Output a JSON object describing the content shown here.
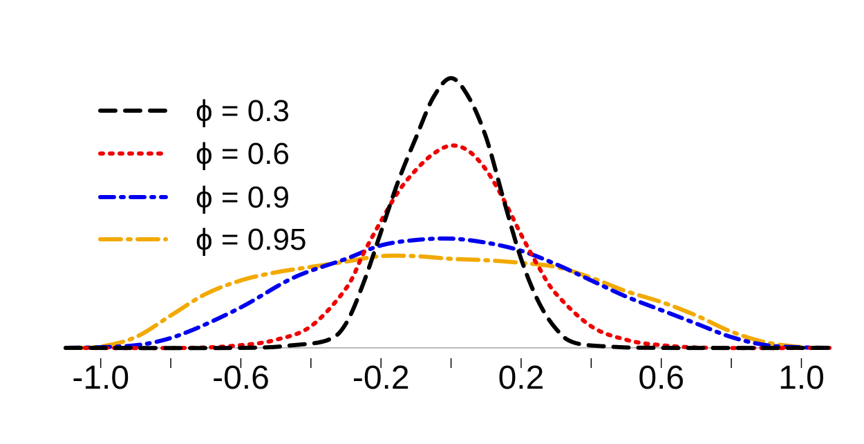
{
  "chart_data": {
    "type": "line",
    "title": "",
    "xlabel": "",
    "ylabel": "",
    "xlim": [
      -1.1,
      1.08
    ],
    "ylim": [
      0,
      1
    ],
    "x_ticks_major": [
      -1.0,
      -0.6,
      -0.2,
      0.2,
      0.6,
      1.0
    ],
    "x_tick_labels": [
      "-1.0",
      "-0.6",
      "-0.2",
      "0.2",
      "0.6",
      "1.0"
    ],
    "x_ticks_minor": [
      -0.8,
      -0.4,
      0.0,
      0.4,
      0.8
    ],
    "y_axis_shown": false,
    "grid": false,
    "legend_position": "top-left",
    "series": [
      {
        "name": "ϕ = 0.3",
        "color": "#000000",
        "dash": "dashed",
        "x": [
          -1.1,
          -0.6,
          -0.45,
          -0.35,
          -0.3,
          -0.25,
          -0.2,
          -0.15,
          -0.1,
          -0.05,
          0.0,
          0.05,
          0.1,
          0.15,
          0.2,
          0.25,
          0.3,
          0.35,
          0.45,
          0.6,
          1.08
        ],
        "y": [
          0.0,
          0.0,
          0.01,
          0.03,
          0.09,
          0.24,
          0.43,
          0.62,
          0.78,
          0.93,
          1.0,
          0.93,
          0.78,
          0.55,
          0.33,
          0.17,
          0.07,
          0.02,
          0.005,
          0.0,
          0.0
        ]
      },
      {
        "name": "ϕ = 0.6",
        "color": "#ee0000",
        "dash": "dotted",
        "x": [
          -1.1,
          -0.75,
          -0.6,
          -0.5,
          -0.4,
          -0.3,
          -0.25,
          -0.2,
          -0.15,
          -0.1,
          -0.05,
          0.0,
          0.05,
          0.1,
          0.15,
          0.2,
          0.25,
          0.3,
          0.4,
          0.5,
          0.6,
          0.75,
          1.08
        ],
        "y": [
          0.0,
          0.0,
          0.01,
          0.03,
          0.08,
          0.22,
          0.35,
          0.47,
          0.58,
          0.66,
          0.72,
          0.75,
          0.73,
          0.66,
          0.55,
          0.42,
          0.3,
          0.2,
          0.08,
          0.03,
          0.01,
          0.0,
          0.0
        ]
      },
      {
        "name": "ϕ = 0.9",
        "color": "#0000ee",
        "dash": "dashdot",
        "x": [
          -1.1,
          -0.95,
          -0.85,
          -0.75,
          -0.6,
          -0.45,
          -0.3,
          -0.2,
          -0.1,
          0.0,
          0.1,
          0.2,
          0.3,
          0.4,
          0.5,
          0.6,
          0.7,
          0.8,
          0.9,
          1.0,
          1.08
        ],
        "y": [
          0.0,
          0.005,
          0.02,
          0.06,
          0.15,
          0.26,
          0.33,
          0.38,
          0.4,
          0.405,
          0.39,
          0.36,
          0.31,
          0.25,
          0.19,
          0.14,
          0.09,
          0.04,
          0.01,
          0.002,
          0.0
        ]
      },
      {
        "name": "ϕ = 0.95",
        "color": "#f2a900",
        "dash": "longdashdot",
        "x": [
          -1.1,
          -1.0,
          -0.9,
          -0.8,
          -0.7,
          -0.6,
          -0.5,
          -0.4,
          -0.3,
          -0.2,
          -0.1,
          0.0,
          0.1,
          0.2,
          0.3,
          0.4,
          0.5,
          0.6,
          0.7,
          0.8,
          0.9,
          1.0,
          1.08
        ],
        "y": [
          0.0,
          0.005,
          0.04,
          0.12,
          0.2,
          0.25,
          0.28,
          0.3,
          0.32,
          0.34,
          0.34,
          0.33,
          0.325,
          0.315,
          0.3,
          0.26,
          0.21,
          0.17,
          0.12,
          0.06,
          0.02,
          0.003,
          0.0
        ]
      }
    ]
  }
}
